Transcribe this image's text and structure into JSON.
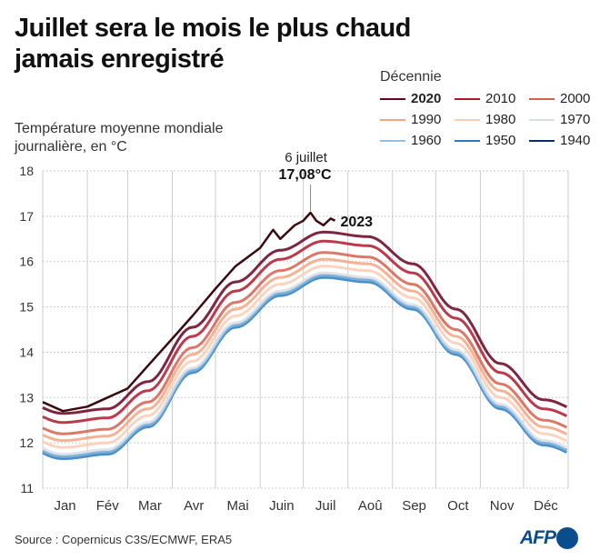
{
  "chart_data": {
    "type": "line",
    "title": "Juillet sera le mois le plus chaud jamais enregistré",
    "subtitle": "Température moyenne mondiale journalière, en °C",
    "xlabel": "",
    "ylabel": "",
    "ylim": [
      11,
      18
    ],
    "yticks": [
      "11",
      "12",
      "13",
      "14",
      "15",
      "16",
      "17",
      "18"
    ],
    "xticks": [
      "Jan",
      "Fév",
      "Mar",
      "Avr",
      "Mai",
      "Juin",
      "Juil",
      "Aoû",
      "Sep",
      "Oct",
      "Nov",
      "Déc"
    ],
    "grid": true,
    "legend_title": "Décennie",
    "legend_placement": "top-right",
    "x": [
      "01-15",
      "02-15",
      "03-15",
      "04-15",
      "05-15",
      "06-15",
      "07-15",
      "08-15",
      "09-15",
      "10-15",
      "11-15",
      "12-15"
    ],
    "series": [
      {
        "name": "1940",
        "color": "#08306b",
        "values": [
          11.7,
          11.8,
          12.4,
          13.6,
          14.6,
          15.3,
          15.7,
          15.6,
          15.0,
          14.0,
          12.8,
          12.0
        ]
      },
      {
        "name": "1950",
        "color": "#2c7bbf",
        "values": [
          11.65,
          11.75,
          12.35,
          13.55,
          14.55,
          15.25,
          15.65,
          15.55,
          14.95,
          13.95,
          12.75,
          11.95
        ]
      },
      {
        "name": "1960",
        "color": "#8dc1e6",
        "values": [
          11.7,
          11.8,
          12.4,
          13.6,
          14.6,
          15.3,
          15.7,
          15.6,
          15.0,
          14.0,
          12.8,
          12.0
        ]
      },
      {
        "name": "1970",
        "color": "#d6dee8",
        "values": [
          11.75,
          11.85,
          12.45,
          13.65,
          14.65,
          15.35,
          15.75,
          15.65,
          15.05,
          14.05,
          12.85,
          12.05
        ]
      },
      {
        "name": "1980",
        "color": "#f9cdb4",
        "values": [
          11.9,
          12.0,
          12.6,
          13.8,
          14.8,
          15.5,
          15.9,
          15.8,
          15.2,
          14.2,
          13.0,
          12.2
        ]
      },
      {
        "name": "1990",
        "color": "#f4a582",
        "values": [
          12.05,
          12.15,
          12.75,
          13.95,
          14.95,
          15.65,
          16.05,
          15.95,
          15.35,
          14.35,
          13.15,
          12.35
        ]
      },
      {
        "name": "2000",
        "color": "#d6604d",
        "values": [
          12.2,
          12.3,
          12.9,
          14.1,
          15.1,
          15.8,
          16.2,
          16.1,
          15.5,
          14.5,
          13.3,
          12.5
        ]
      },
      {
        "name": "2010",
        "color": "#b2182b",
        "values": [
          12.45,
          12.55,
          13.15,
          14.35,
          15.35,
          16.05,
          16.45,
          16.35,
          15.75,
          14.75,
          13.55,
          12.75
        ]
      },
      {
        "name": "2020",
        "color": "#67001f",
        "values": [
          12.65,
          12.75,
          13.35,
          14.55,
          15.55,
          16.25,
          16.65,
          16.55,
          15.95,
          14.95,
          13.75,
          12.95
        ]
      }
    ],
    "highlight": {
      "name": "2023",
      "color": "#3b0a0f",
      "x": [
        "01-01",
        "01-15",
        "02-01",
        "02-15",
        "03-01",
        "03-15",
        "04-01",
        "04-15",
        "05-01",
        "05-15",
        "06-01",
        "06-10",
        "06-15",
        "06-25",
        "07-01",
        "07-06",
        "07-10",
        "07-15",
        "07-20",
        "07-23"
      ],
      "values": [
        12.9,
        12.7,
        12.8,
        13.0,
        13.2,
        13.7,
        14.3,
        14.8,
        15.4,
        15.9,
        16.3,
        16.7,
        16.5,
        16.8,
        16.9,
        17.08,
        16.9,
        16.8,
        16.95,
        16.9
      ]
    },
    "annotation": {
      "date_label": "6 juillet",
      "value_label": "17,08°C",
      "date": "07-06",
      "value": 17.08
    }
  },
  "source": "Source : Copernicus C3S/ECMWF, ERA5",
  "logo": "AFP"
}
